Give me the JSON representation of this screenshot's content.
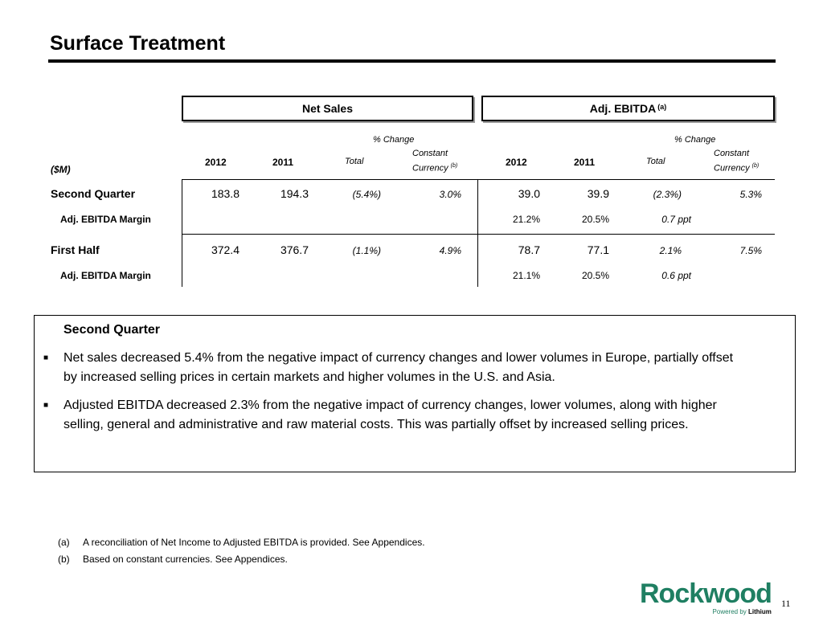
{
  "title": "Surface Treatment",
  "headers": {
    "net_sales": "Net Sales",
    "adj_ebitda": "Adj. EBITDA",
    "adj_ebitda_note": "(a)",
    "pct_change": "% Change",
    "y2012": "2012",
    "y2011": "2011",
    "total": "Total",
    "constant": "Constant",
    "currency": "Currency",
    "currency_note": "(b)",
    "units": "($M)"
  },
  "rows": {
    "q2": {
      "label": "Second Quarter",
      "ns_2012": "183.8",
      "ns_2011": "194.3",
      "ns_total": "(5.4%)",
      "ns_cc": "3.0%",
      "eb_2012": "39.0",
      "eb_2011": "39.9",
      "eb_total": "(2.3%)",
      "eb_cc": "5.3%"
    },
    "q2_margin": {
      "label": "Adj. EBITDA Margin",
      "m_2012": "21.2%",
      "m_2011": "20.5%",
      "change": "0.7 ppt"
    },
    "h1": {
      "label": "First Half",
      "ns_2012": "372.4",
      "ns_2011": "376.7",
      "ns_total": "(1.1%)",
      "ns_cc": "4.9%",
      "eb_2012": "78.7",
      "eb_2011": "77.1",
      "eb_total": "2.1%",
      "eb_cc": "7.5%"
    },
    "h1_margin": {
      "label": "Adj. EBITDA Margin",
      "m_2012": "21.1%",
      "m_2011": "20.5%",
      "change": "0.6 ppt"
    }
  },
  "commentary": {
    "heading": "Second Quarter",
    "bullet_glyph": "■",
    "bullet1_line1": "Net sales decreased 5.4% from the negative impact of currency changes and lower volumes in Europe, partially offset",
    "bullet1_line2": "by increased selling prices in certain markets and higher volumes in the U.S. and Asia.",
    "bullet2_line1": "Adjusted EBITDA decreased 2.3% from the negative impact of currency changes, lower volumes, along with higher",
    "bullet2_line2": "selling, general and administrative and raw material costs. This was partially offset by increased selling prices."
  },
  "footnotes": [
    {
      "mark": "(a)",
      "text": "A reconciliation of Net Income to Adjusted EBITDA is provided. See Appendices."
    },
    {
      "mark": "(b)",
      "text": "Based on constant currencies. See Appendices."
    }
  ],
  "logo": {
    "name": "Rockwood",
    "tagline_prefix": "Powered by",
    "tagline_bold": "Lithium",
    "color": "#1f7f62"
  },
  "page_number": "11"
}
